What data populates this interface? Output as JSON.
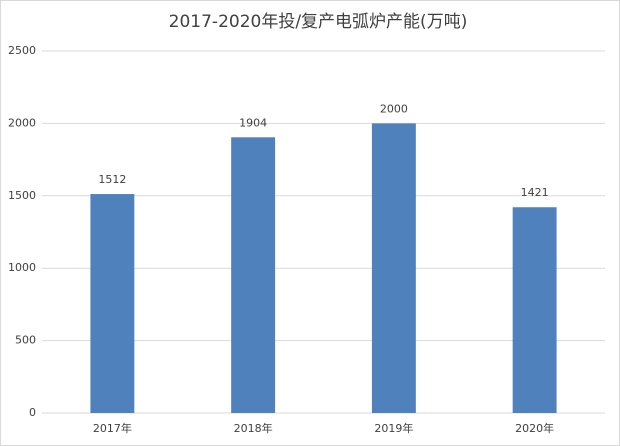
{
  "chart_data": {
    "type": "bar",
    "title": "2017-2020年投/复产电弧炉产能(万吨)",
    "categories": [
      "2017年",
      "2018年",
      "2019年",
      "2020年"
    ],
    "values": [
      1512,
      1904,
      2000,
      1421
    ],
    "color": "#4f81bd",
    "ylim": [
      0,
      2500
    ],
    "yticks": [
      0,
      500,
      1000,
      1500,
      2000,
      2500
    ],
    "grid": true,
    "data_labels": true
  }
}
